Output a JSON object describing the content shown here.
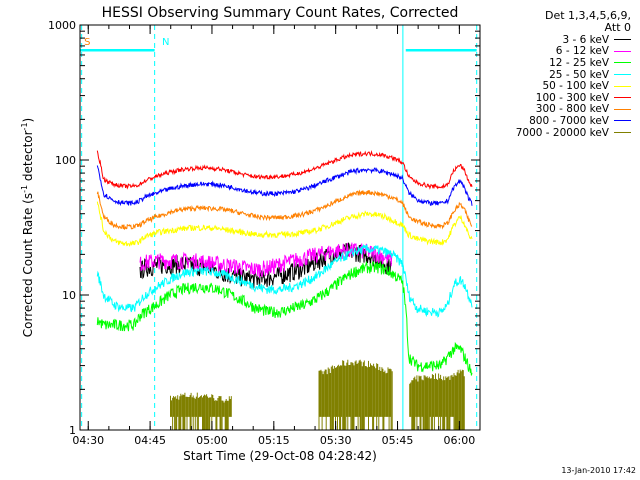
{
  "chart_data": {
    "type": "line",
    "title": "HESSI Observing Summary Count Rates, Corrected",
    "xlabel": "Start Time (29-Oct-08 04:28:42)",
    "ylabel": "Corrected Count Rate (s",
    "ylabel_sup1": "-1",
    "ylabel_mid": " detector",
    "ylabel_sup2": "-1",
    "ylabel_end": ")",
    "y_scale": "log",
    "xlim_minutes": [
      -0.7,
      96.3
    ],
    "ylim": [
      1,
      1000
    ],
    "x_ticks": [
      {
        "m": 1.3,
        "label": "04:30"
      },
      {
        "m": 16.3,
        "label": "04:45"
      },
      {
        "m": 31.3,
        "label": "05:00"
      },
      {
        "m": 46.3,
        "label": "05:15"
      },
      {
        "m": 61.3,
        "label": "05:30"
      },
      {
        "m": 76.3,
        "label": "05:45"
      },
      {
        "m": 91.3,
        "label": "06:00"
      }
    ],
    "y_ticks": [
      {
        "v": 1,
        "label": "1"
      },
      {
        "v": 10,
        "label": "10"
      },
      {
        "v": 100,
        "label": "100"
      },
      {
        "v": 1000,
        "label": "1000"
      }
    ],
    "legend_header": [
      "Det 1,3,4,5,6,9,",
      "Att 0"
    ],
    "flag_labels": [
      {
        "text": "S",
        "m": 0.3,
        "color": "#ff8000"
      },
      {
        "text": "N",
        "m": 19.2,
        "color": "#00ffff"
      }
    ],
    "flag_bars": [
      {
        "start": -0.7,
        "end": 17.4,
        "value": 650,
        "color": "#00ffff"
      },
      {
        "start": 78.3,
        "end": 95.5,
        "value": 650,
        "color": "#00ffff"
      }
    ],
    "vlines_dashed_minutes": [
      -0.3,
      17.4,
      95.5
    ],
    "vlines_solid_minutes": [
      77.6
    ],
    "times_minutes": [
      3.5,
      5,
      7.5,
      10,
      12.5,
      13.8,
      15,
      18,
      21,
      24,
      27,
      30,
      33,
      36,
      39,
      42,
      45,
      48,
      51,
      54,
      57,
      60,
      63,
      66,
      69,
      72,
      75,
      77.5,
      79,
      81,
      84,
      87,
      88.5,
      90,
      91.5,
      92.5,
      93.5,
      94.5
    ],
    "series": [
      {
        "name": "3 - 6 keV",
        "color": "#000000",
        "values": [
          null,
          null,
          null,
          null,
          null,
          15,
          16,
          16.5,
          17,
          17,
          16.5,
          16,
          15,
          14,
          13.5,
          13,
          13.5,
          14,
          15,
          16,
          18,
          20,
          21,
          21,
          20,
          18,
          16,
          null,
          null,
          null,
          null,
          null,
          null,
          null,
          null,
          null,
          null,
          null
        ]
      },
      {
        "name": "6 - 12 keV",
        "color": "#ff00ff",
        "values": [
          null,
          null,
          null,
          null,
          null,
          17,
          17.5,
          18,
          18,
          18,
          18,
          17.5,
          17,
          16.5,
          16,
          15.5,
          16,
          17,
          18,
          19,
          20,
          21,
          21.5,
          21.5,
          21,
          20,
          18,
          null,
          null,
          null,
          null,
          null,
          null,
          null,
          null,
          null,
          null,
          null
        ]
      },
      {
        "name": "12 - 25 keV",
        "color": "#00ff00",
        "values": [
          6.5,
          6,
          6,
          6,
          6,
          7,
          7.5,
          8.5,
          10,
          11,
          11.5,
          11.5,
          11,
          10,
          9,
          8,
          7.5,
          7.5,
          8,
          8.5,
          9.5,
          11,
          13,
          15,
          16,
          16,
          14.5,
          12.5,
          3.5,
          3,
          3,
          3,
          3.5,
          4,
          4,
          3.5,
          3,
          2.5
        ]
      },
      {
        "name": "25 - 50 keV",
        "color": "#00ffff",
        "values": [
          14.5,
          10,
          8.5,
          8,
          8,
          9,
          10,
          11.5,
          13,
          14.5,
          15,
          15,
          14.5,
          13.5,
          12.5,
          11.5,
          11,
          11,
          11.5,
          12.5,
          14,
          16.5,
          19,
          21,
          22,
          21.5,
          20,
          17,
          10,
          8,
          7.5,
          7.5,
          8.5,
          12,
          13,
          12,
          10,
          8.5
        ]
      },
      {
        "name": "50 - 100 keV",
        "color": "#ffff00",
        "values": [
          48,
          30,
          25,
          24,
          24,
          25,
          27,
          29,
          30,
          31,
          31.5,
          31.5,
          31,
          30,
          29,
          28,
          28,
          28,
          28.5,
          29,
          30.5,
          33,
          36,
          38.5,
          40,
          39,
          36,
          33,
          28,
          26,
          25,
          24.5,
          26,
          33,
          38,
          34,
          28,
          25
        ]
      },
      {
        "name": "100 - 300 keV",
        "color": "#ff0000",
        "values": [
          115,
          72,
          66,
          64,
          64,
          66,
          70,
          76,
          81,
          85,
          87,
          87.5,
          86,
          82,
          78,
          75,
          75,
          75.5,
          78,
          82,
          88,
          96,
          104,
          110,
          112,
          110,
          104,
          96,
          75,
          68,
          64,
          63,
          66,
          84,
          92,
          84,
          70,
          62
        ]
      },
      {
        "name": "300 - 800 keV",
        "color": "#ff8000",
        "values": [
          58,
          38,
          33,
          32,
          32,
          33,
          35,
          38,
          41,
          43,
          44,
          44,
          43.5,
          42,
          40,
          38,
          37.5,
          37.5,
          38.5,
          40,
          43,
          47,
          52,
          56,
          58,
          56,
          53,
          48,
          38,
          35,
          33,
          32.5,
          34,
          42,
          47,
          43,
          36,
          32
        ]
      },
      {
        "name": "800 - 7000 keV",
        "color": "#0000ff",
        "values": [
          90,
          56,
          50,
          48,
          48,
          50,
          53,
          57,
          61,
          64,
          66,
          66.5,
          65.5,
          63,
          60,
          57,
          56.5,
          56.5,
          58,
          61,
          66,
          72,
          78,
          83,
          85,
          83,
          79,
          73,
          57,
          51,
          48,
          47.5,
          50,
          63,
          70,
          63,
          52,
          46
        ]
      },
      {
        "name": "7000 - 20000 keV",
        "color": "#808000",
        "values": [
          null,
          null,
          null,
          null,
          null,
          null,
          null,
          null,
          1.7,
          1.8,
          1.8,
          1.8,
          1.7,
          1.7,
          null,
          null,
          null,
          null,
          null,
          null,
          2.6,
          2.8,
          3.1,
          3.2,
          3.1,
          2.9,
          2.7,
          null,
          2.2,
          2.4,
          2.5,
          2.5,
          2.4,
          2.6,
          2.8,
          2.6,
          null,
          null
        ]
      }
    ],
    "grid": false,
    "legend_placement": "right"
  },
  "footer_timestamp": "13-Jan-2010 17:42"
}
